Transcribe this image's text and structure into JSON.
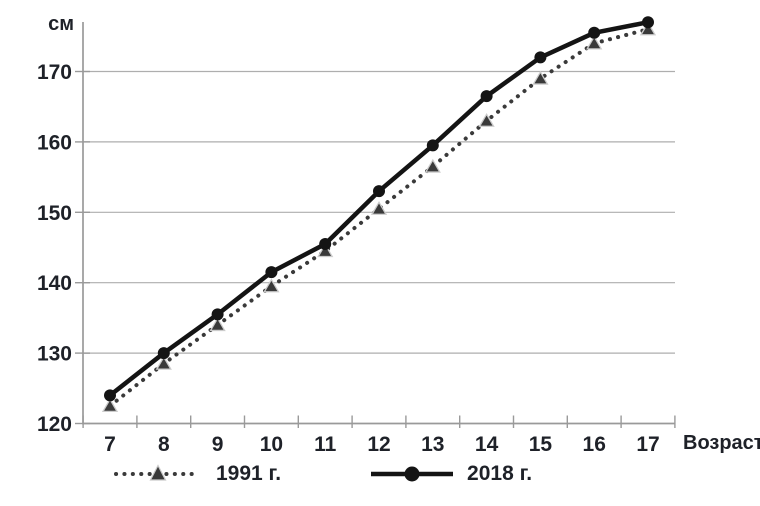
{
  "colors": {
    "axis": "#9a9a9a",
    "grid": "#aeaeae",
    "text": "#1e2128",
    "marker_halo": "#cccccc"
  },
  "chart_data": {
    "type": "line",
    "x": [
      7,
      8,
      9,
      10,
      11,
      12,
      13,
      14,
      15,
      16,
      17
    ],
    "xlabel": "Возраст",
    "ylabel": "см",
    "ylim": [
      120,
      178
    ],
    "yticks": [
      120,
      130,
      140,
      150,
      160,
      170
    ],
    "grid": true,
    "legend_position": "bottom",
    "series": [
      {
        "name": "1991 г.",
        "line_style": "dotted",
        "marker": "triangle",
        "color": "#3a3a3a",
        "values": [
          122.5,
          128.5,
          134,
          139.5,
          144.5,
          150.5,
          156.5,
          163,
          169,
          174,
          176
        ]
      },
      {
        "name": "2018 г.",
        "line_style": "solid",
        "marker": "circle",
        "color": "#141414",
        "values": [
          124,
          130,
          135.5,
          141.5,
          145.5,
          153,
          159.5,
          166.5,
          172,
          175.5,
          177
        ]
      }
    ]
  }
}
